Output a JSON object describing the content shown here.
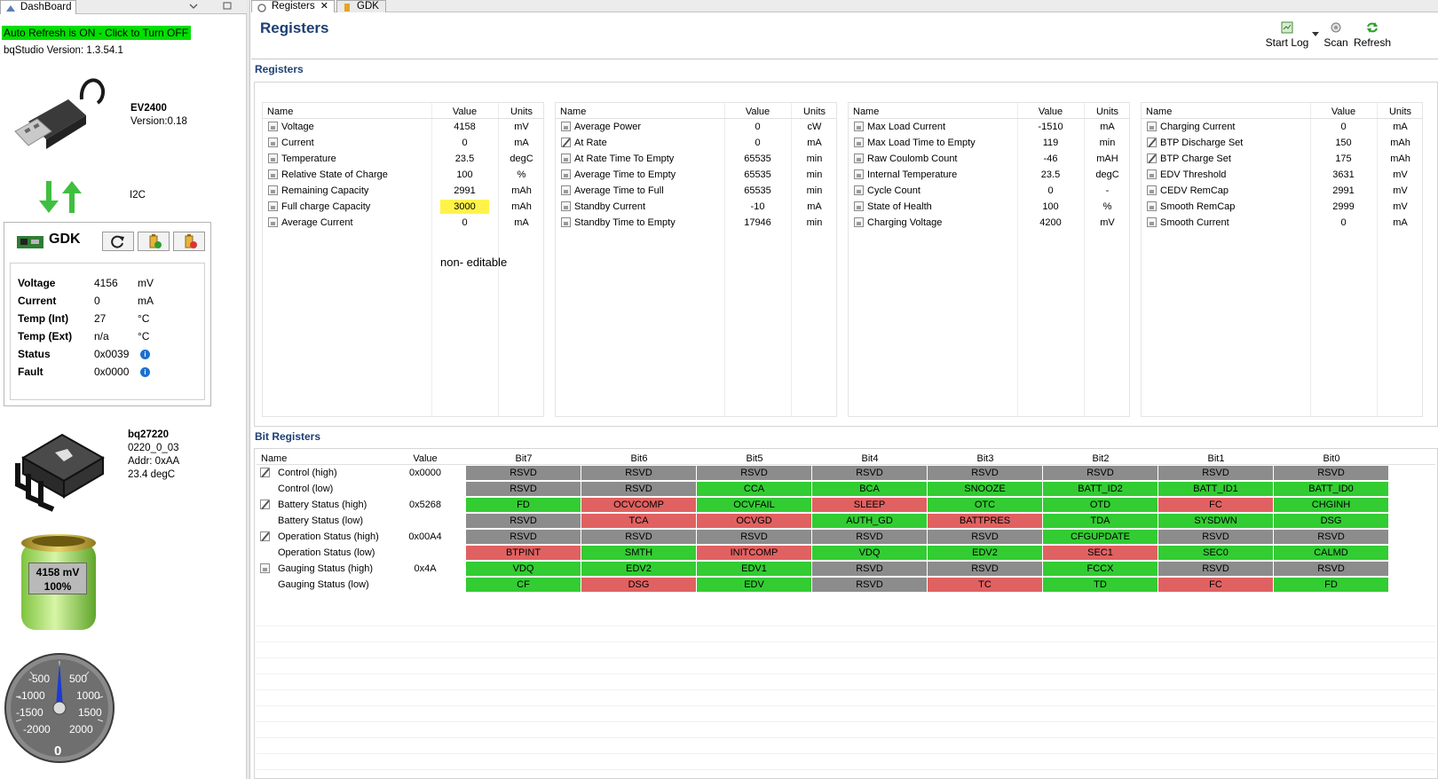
{
  "left_tab": {
    "label": "DashBoard"
  },
  "right_tabs": [
    {
      "label": "Registers"
    },
    {
      "label": "GDK"
    }
  ],
  "dashboard": {
    "auto_refresh": "Auto Refresh is ON - Click to Turn OFF",
    "version": "bqStudio Version:  1.3.54.1",
    "ev": {
      "name": "EV2400",
      "version": "Version:0.18"
    },
    "interface": "I2C",
    "gdk": {
      "title": "GDK",
      "rows": [
        {
          "label": "Voltage",
          "value": "4156",
          "unit": "mV"
        },
        {
          "label": "Current",
          "value": "0",
          "unit": "mA"
        },
        {
          "label": "Temp (Int)",
          "value": "27",
          "unit": "°C"
        },
        {
          "label": "Temp (Ext)",
          "value": "n/a",
          "unit": "°C"
        },
        {
          "label": "Status",
          "value": "0x0039",
          "unit": ""
        },
        {
          "label": "Fault",
          "value": "0x0000",
          "unit": ""
        }
      ]
    },
    "chip": {
      "name": "bq27220",
      "fw": "0220_0_03",
      "addr": "Addr: 0xAA",
      "temp": "23.4 degC"
    },
    "battery": {
      "voltage": "4158 mV",
      "percent": "100%",
      "fill_fraction": 1.0
    },
    "gauge": {
      "labels_left": [
        "-500",
        "-1000",
        "-1500",
        "-2000"
      ],
      "labels_right": [
        "500",
        "1000",
        "1500",
        "2000"
      ],
      "center": "0",
      "value": 0
    }
  },
  "header": {
    "title": "Registers",
    "tools": [
      {
        "label": "Start Log"
      },
      {
        "label": "Scan"
      },
      {
        "label": "Refresh"
      }
    ]
  },
  "registers": {
    "title": "Registers",
    "col_headers": {
      "name": "Name",
      "value": "Value",
      "units": "Units"
    },
    "note": "non- editable",
    "columns": [
      [
        {
          "name": "Voltage",
          "value": "4158",
          "unit": "mV",
          "icon": "lock"
        },
        {
          "name": "Current",
          "value": "0",
          "unit": "mA",
          "icon": "lock"
        },
        {
          "name": "Temperature",
          "value": "23.5",
          "unit": "degC",
          "icon": "lock"
        },
        {
          "name": "Relative State of Charge",
          "value": "100",
          "unit": "%",
          "icon": "lock"
        },
        {
          "name": "Remaining Capacity",
          "value": "2991",
          "unit": "mAh",
          "icon": "lock"
        },
        {
          "name": "Full charge Capacity",
          "value": "3000",
          "unit": "mAh",
          "icon": "lock",
          "highlight": true
        },
        {
          "name": "Average Current",
          "value": "0",
          "unit": "mA",
          "icon": "lock"
        }
      ],
      [
        {
          "name": "Average Power",
          "value": "0",
          "unit": "cW",
          "icon": "lock"
        },
        {
          "name": "At Rate",
          "value": "0",
          "unit": "mA",
          "icon": "pencil"
        },
        {
          "name": "At Rate Time To Empty",
          "value": "65535",
          "unit": "min",
          "icon": "lock"
        },
        {
          "name": "Average Time to Empty",
          "value": "65535",
          "unit": "min",
          "icon": "lock"
        },
        {
          "name": "Average Time to Full",
          "value": "65535",
          "unit": "min",
          "icon": "lock"
        },
        {
          "name": "Standby Current",
          "value": "-10",
          "unit": "mA",
          "icon": "lock"
        },
        {
          "name": "Standby Time to Empty",
          "value": "17946",
          "unit": "min",
          "icon": "lock"
        }
      ],
      [
        {
          "name": "Max Load Current",
          "value": "-1510",
          "unit": "mA",
          "icon": "lock"
        },
        {
          "name": "Max Load Time to Empty",
          "value": "119",
          "unit": "min",
          "icon": "lock"
        },
        {
          "name": "Raw Coulomb Count",
          "value": "-46",
          "unit": "mAH",
          "icon": "lock"
        },
        {
          "name": "Internal Temperature",
          "value": "23.5",
          "unit": "degC",
          "icon": "lock"
        },
        {
          "name": "Cycle Count",
          "value": "0",
          "unit": "-",
          "icon": "lock"
        },
        {
          "name": "State of Health",
          "value": "100",
          "unit": "%",
          "icon": "lock"
        },
        {
          "name": "Charging Voltage",
          "value": "4200",
          "unit": "mV",
          "icon": "lock"
        }
      ],
      [
        {
          "name": "Charging Current",
          "value": "0",
          "unit": "mA",
          "icon": "lock"
        },
        {
          "name": "BTP Discharge Set",
          "value": "150",
          "unit": "mAh",
          "icon": "pencil"
        },
        {
          "name": "BTP Charge Set",
          "value": "175",
          "unit": "mAh",
          "icon": "pencil"
        },
        {
          "name": "EDV Threshold",
          "value": "3631",
          "unit": "mV",
          "icon": "lock"
        },
        {
          "name": "CEDV RemCap",
          "value": "2991",
          "unit": "mV",
          "icon": "lock"
        },
        {
          "name": "Smooth RemCap",
          "value": "2999",
          "unit": "mV",
          "icon": "lock"
        },
        {
          "name": "Smooth Current",
          "value": "0",
          "unit": "mA",
          "icon": "lock"
        }
      ]
    ]
  },
  "bit_registers": {
    "title": "Bit Registers",
    "headers": [
      "Name",
      "Value",
      "Bit7",
      "Bit6",
      "Bit5",
      "Bit4",
      "Bit3",
      "Bit2",
      "Bit1",
      "Bit0"
    ],
    "colors": {
      "gray": "#8c8c8c",
      "green": "#33cc33",
      "red": "#e06161"
    },
    "rows": [
      {
        "name": "Control (high)",
        "value": "0x0000",
        "icon": "pencil",
        "bits": [
          [
            "RSVD",
            "gray"
          ],
          [
            "RSVD",
            "gray"
          ],
          [
            "RSVD",
            "gray"
          ],
          [
            "RSVD",
            "gray"
          ],
          [
            "RSVD",
            "gray"
          ],
          [
            "RSVD",
            "gray"
          ],
          [
            "RSVD",
            "gray"
          ],
          [
            "RSVD",
            "gray"
          ]
        ]
      },
      {
        "name": "Control (low)",
        "value": "",
        "icon": "",
        "bits": [
          [
            "RSVD",
            "gray"
          ],
          [
            "RSVD",
            "gray"
          ],
          [
            "CCA",
            "green"
          ],
          [
            "BCA",
            "green"
          ],
          [
            "SNOOZE",
            "green"
          ],
          [
            "BATT_ID2",
            "green"
          ],
          [
            "BATT_ID1",
            "green"
          ],
          [
            "BATT_ID0",
            "green"
          ]
        ]
      },
      {
        "name": "Battery Status (high)",
        "value": "0x5268",
        "icon": "pencil",
        "bits": [
          [
            "FD",
            "green"
          ],
          [
            "OCVCOMP",
            "red"
          ],
          [
            "OCVFAIL",
            "green"
          ],
          [
            "SLEEP",
            "red"
          ],
          [
            "OTC",
            "green"
          ],
          [
            "OTD",
            "green"
          ],
          [
            "FC",
            "red"
          ],
          [
            "CHGINH",
            "green"
          ]
        ]
      },
      {
        "name": "Battery Status (low)",
        "value": "",
        "icon": "",
        "bits": [
          [
            "RSVD",
            "gray"
          ],
          [
            "TCA",
            "red"
          ],
          [
            "OCVGD",
            "red"
          ],
          [
            "AUTH_GD",
            "green"
          ],
          [
            "BATTPRES",
            "red"
          ],
          [
            "TDA",
            "green"
          ],
          [
            "SYSDWN",
            "green"
          ],
          [
            "DSG",
            "green"
          ]
        ]
      },
      {
        "name": "Operation Status (high)",
        "value": "0x00A4",
        "icon": "pencil",
        "bits": [
          [
            "RSVD",
            "gray"
          ],
          [
            "RSVD",
            "gray"
          ],
          [
            "RSVD",
            "gray"
          ],
          [
            "RSVD",
            "gray"
          ],
          [
            "RSVD",
            "gray"
          ],
          [
            "CFGUPDATE",
            "green"
          ],
          [
            "RSVD",
            "gray"
          ],
          [
            "RSVD",
            "gray"
          ]
        ]
      },
      {
        "name": "Operation Status (low)",
        "value": "",
        "icon": "",
        "bits": [
          [
            "BTPINT",
            "red"
          ],
          [
            "SMTH",
            "green"
          ],
          [
            "INITCOMP",
            "red"
          ],
          [
            "VDQ",
            "green"
          ],
          [
            "EDV2",
            "green"
          ],
          [
            "SEC1",
            "red"
          ],
          [
            "SEC0",
            "green"
          ],
          [
            "CALMD",
            "green"
          ]
        ]
      },
      {
        "name": "Gauging Status (high)",
        "value": "0x4A",
        "icon": "lock",
        "bits": [
          [
            "VDQ",
            "green"
          ],
          [
            "EDV2",
            "green"
          ],
          [
            "EDV1",
            "green"
          ],
          [
            "RSVD",
            "gray"
          ],
          [
            "RSVD",
            "gray"
          ],
          [
            "FCCX",
            "green"
          ],
          [
            "RSVD",
            "gray"
          ],
          [
            "RSVD",
            "gray"
          ]
        ]
      },
      {
        "name": "Gauging Status (low)",
        "value": "",
        "icon": "",
        "bits": [
          [
            "CF",
            "green"
          ],
          [
            "DSG",
            "red"
          ],
          [
            "EDV",
            "green"
          ],
          [
            "RSVD",
            "gray"
          ],
          [
            "TC",
            "red"
          ],
          [
            "TD",
            "green"
          ],
          [
            "FC",
            "red"
          ],
          [
            "FD",
            "green"
          ]
        ]
      }
    ]
  }
}
